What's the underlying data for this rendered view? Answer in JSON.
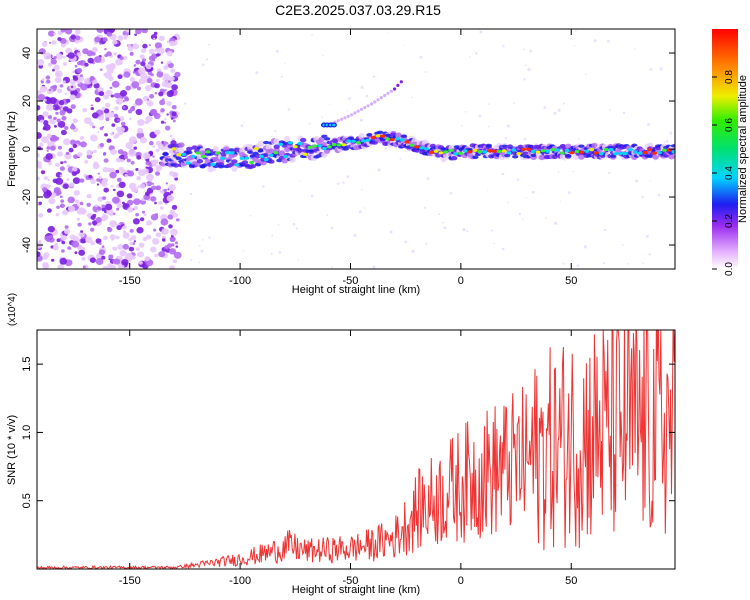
{
  "title": "C2E3.2025.037.03.29.R15",
  "chart_data": [
    {
      "type": "heatmap",
      "xlabel": "Height of straight line (km)",
      "ylabel": "Frequency (Hz)",
      "xlim": [
        -192,
        97
      ],
      "ylim": [
        -50,
        50
      ],
      "xticks": [
        -150,
        -100,
        -50,
        0,
        50
      ],
      "yticks": [
        -40,
        -20,
        0,
        20,
        40
      ],
      "colorbar": {
        "label": "Normalized spectral amplitude",
        "range": [
          0.0,
          1.0
        ],
        "ticks": [
          0.0,
          0.2,
          0.4,
          0.6,
          0.8
        ]
      },
      "ridge": {
        "x": [
          -135,
          -125,
          -115,
          -105,
          -95,
          -85,
          -75,
          -65,
          -55,
          -45,
          -38,
          -30,
          -22,
          -15,
          -8,
          0,
          10,
          20,
          30,
          40,
          50,
          60,
          70,
          80,
          90,
          97
        ],
        "y": [
          -2,
          -3,
          -4,
          -4,
          -3,
          -1,
          0,
          1,
          2,
          3,
          5,
          4,
          2,
          0,
          -2,
          -1,
          -1,
          -1,
          -1,
          -1,
          -1,
          -1,
          -1,
          -1,
          -1,
          -1
        ]
      },
      "secondary_track": {
        "x": [
          -60,
          -50,
          -40,
          -35,
          -30,
          -27
        ],
        "y": [
          10,
          14,
          19,
          22,
          25,
          28
        ]
      }
    },
    {
      "type": "line",
      "xlabel": "Height of straight line (km)",
      "ylabel": "SNR (10 * v/v)",
      "y_multiplier": "(x10^4)",
      "xlim": [
        -192,
        97
      ],
      "ylim": [
        0,
        1.75
      ],
      "xticks": [
        -150,
        -100,
        -50,
        0,
        50
      ],
      "yticks": [
        0.5,
        1.0,
        1.5
      ],
      "series": [
        {
          "color": "#ee3333",
          "envelope_x": [
            -192,
            -130,
            -125,
            -115,
            -105,
            -95,
            -85,
            -78,
            -70,
            -60,
            -50,
            -40,
            -30,
            -25,
            -20,
            -15,
            -10,
            -5,
            0,
            5,
            10,
            20,
            30,
            40,
            50,
            60,
            70,
            80,
            90,
            97
          ],
          "envelope_y": [
            0.01,
            0.012,
            0.02,
            0.04,
            0.06,
            0.09,
            0.13,
            0.17,
            0.13,
            0.14,
            0.15,
            0.18,
            0.23,
            0.32,
            0.42,
            0.48,
            0.52,
            0.57,
            0.62,
            0.66,
            0.7,
            0.75,
            0.8,
            0.88,
            0.95,
            1.0,
            1.02,
            1.05,
            1.05,
            1.05
          ]
        }
      ]
    }
  ]
}
